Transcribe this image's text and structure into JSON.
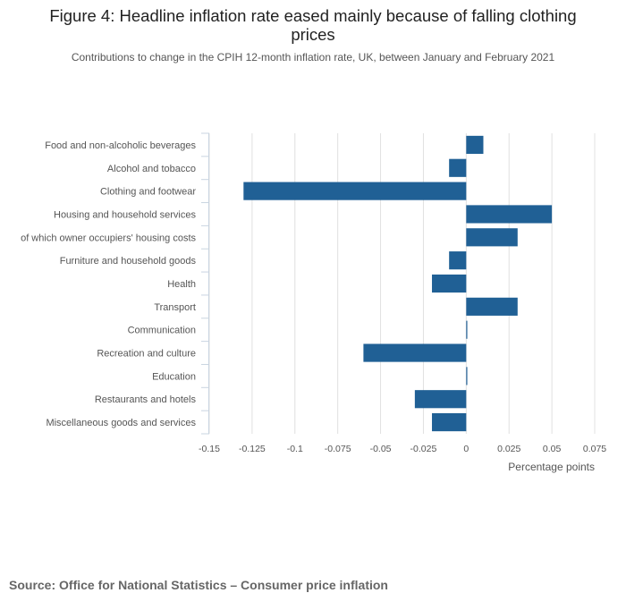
{
  "chart_data": {
    "type": "bar",
    "orientation": "horizontal",
    "title": "Figure 4: Headline inflation rate eased mainly because of falling clothing prices",
    "subtitle": "Contributions to change in the CPIH 12-month inflation rate, UK, between January and February 2021",
    "xlabel": "Percentage points",
    "ylabel": "",
    "xlim": [
      -0.15,
      0.075
    ],
    "ticks": [
      -0.15,
      -0.125,
      -0.1,
      -0.075,
      -0.05,
      -0.025,
      0,
      0.025,
      0.05,
      0.075
    ],
    "tick_labels": [
      "-0.15",
      "-0.125",
      "-0.1",
      "-0.075",
      "-0.05",
      "-0.025",
      "0",
      "0.025",
      "0.05",
      "0.075"
    ],
    "categories": [
      "Food and non-alcoholic beverages",
      "Alcohol and tobacco",
      "Clothing and footwear",
      "Housing and household services",
      "of which owner occupiers' housing costs",
      "Furniture and household goods",
      "Health",
      "Transport",
      "Communication",
      "Recreation and culture",
      "Education",
      "Restaurants and hotels",
      "Miscellaneous goods and services"
    ],
    "values": [
      0.01,
      -0.01,
      -0.13,
      0.05,
      0.03,
      -0.01,
      -0.02,
      0.03,
      0.0,
      -0.06,
      0.0,
      -0.03,
      -0.02
    ],
    "bar_color": "#206095",
    "grid": true
  },
  "source": "Source: Office for National Statistics – Consumer price inflation"
}
